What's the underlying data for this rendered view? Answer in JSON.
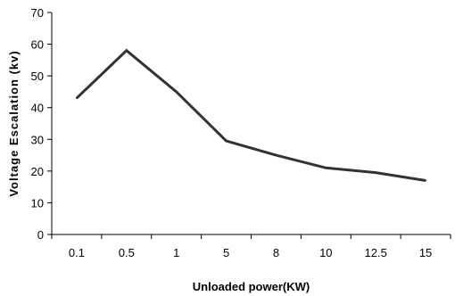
{
  "chart_data": {
    "type": "line",
    "title": "",
    "xlabel": "Unloaded power(KW)",
    "ylabel": "Voltage Escalation (kv)",
    "categories": [
      "0.1",
      "0.5",
      "1",
      "5",
      "8",
      "10",
      "12.5",
      "15"
    ],
    "series": [
      {
        "values": [
          43,
          58,
          45,
          29.5,
          25,
          21,
          19.5,
          17
        ]
      }
    ],
    "ylim": [
      0,
      70
    ],
    "yticks": [
      "0",
      "10",
      "20",
      "30",
      "40",
      "50",
      "60",
      "70"
    ],
    "grid": false,
    "legend": "none",
    "line_color": "#333333",
    "axis_color": "#000000"
  }
}
